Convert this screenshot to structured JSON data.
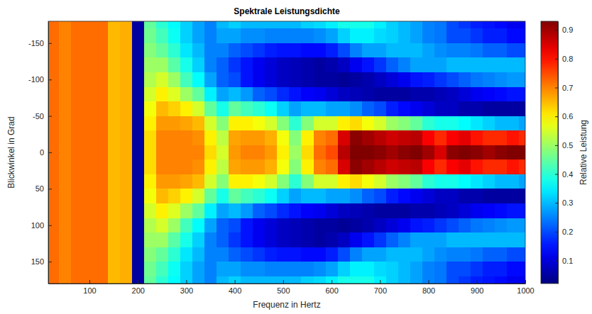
{
  "chart_data": {
    "type": "heatmap",
    "title": "Spektrale Leistungsdichte",
    "x_label": "Frequenz in Hertz",
    "y_label": "Blickwinkel in Grad",
    "color_label": "Relative Leistung",
    "xlim": [
      15,
      1000
    ],
    "ylim": [
      -180,
      180
    ],
    "xticks": [
      100,
      200,
      300,
      400,
      500,
      600,
      700,
      800,
      900,
      1000
    ],
    "yticks": [
      -150,
      -100,
      -50,
      0,
      50,
      100,
      150
    ],
    "color_range": [
      0.02,
      0.93
    ],
    "color_ticks": [
      0.1,
      0.2,
      0.3,
      0.4,
      0.5,
      0.6,
      0.7,
      0.8,
      0.9
    ],
    "x": [
      25,
      50,
      75,
      100,
      125,
      150,
      175,
      200,
      225,
      250,
      275,
      300,
      325,
      350,
      375,
      400,
      425,
      450,
      475,
      500,
      525,
      550,
      575,
      600,
      625,
      650,
      675,
      700,
      725,
      750,
      775,
      800,
      825,
      850,
      875,
      900,
      925,
      950,
      975,
      1000
    ],
    "y": [
      -180,
      -160,
      -140,
      -120,
      -100,
      -80,
      -60,
      -40,
      -20,
      0,
      20,
      40,
      60,
      80,
      100,
      120,
      140,
      160,
      180
    ],
    "values": [
      [
        0.72,
        0.72,
        0.72,
        0.72,
        0.72,
        0.72,
        0.72,
        0.72,
        0.72,
        0.72,
        0.72,
        0.72,
        0.72,
        0.72,
        0.72,
        0.72,
        0.72,
        0.72,
        0.72
      ],
      [
        0.7,
        0.7,
        0.7,
        0.7,
        0.7,
        0.7,
        0.7,
        0.7,
        0.7,
        0.7,
        0.7,
        0.7,
        0.7,
        0.7,
        0.7,
        0.7,
        0.7,
        0.7,
        0.7
      ],
      [
        0.72,
        0.72,
        0.72,
        0.72,
        0.72,
        0.72,
        0.72,
        0.72,
        0.72,
        0.72,
        0.72,
        0.72,
        0.72,
        0.72,
        0.72,
        0.72,
        0.72,
        0.72,
        0.72
      ],
      [
        0.72,
        0.72,
        0.72,
        0.72,
        0.72,
        0.72,
        0.72,
        0.72,
        0.72,
        0.72,
        0.72,
        0.72,
        0.72,
        0.72,
        0.72,
        0.72,
        0.72,
        0.72,
        0.72
      ],
      [
        0.72,
        0.72,
        0.72,
        0.72,
        0.72,
        0.72,
        0.72,
        0.72,
        0.72,
        0.72,
        0.72,
        0.72,
        0.72,
        0.72,
        0.72,
        0.72,
        0.72,
        0.72,
        0.72
      ],
      [
        0.65,
        0.65,
        0.65,
        0.65,
        0.65,
        0.65,
        0.65,
        0.65,
        0.65,
        0.65,
        0.65,
        0.65,
        0.65,
        0.65,
        0.65,
        0.65,
        0.65,
        0.65,
        0.65
      ],
      [
        0.66,
        0.66,
        0.66,
        0.66,
        0.66,
        0.66,
        0.66,
        0.66,
        0.66,
        0.66,
        0.66,
        0.66,
        0.66,
        0.66,
        0.66,
        0.66,
        0.66,
        0.66,
        0.66
      ],
      [
        0.05,
        0.05,
        0.05,
        0.05,
        0.05,
        0.05,
        0.05,
        0.05,
        0.05,
        0.05,
        0.05,
        0.05,
        0.05,
        0.05,
        0.05,
        0.05,
        0.05,
        0.05,
        0.05
      ],
      [
        0.45,
        0.46,
        0.48,
        0.5,
        0.52,
        0.55,
        0.58,
        0.6,
        0.62,
        0.62,
        0.62,
        0.6,
        0.58,
        0.55,
        0.52,
        0.5,
        0.48,
        0.46,
        0.45
      ],
      [
        0.4,
        0.42,
        0.45,
        0.5,
        0.55,
        0.6,
        0.65,
        0.68,
        0.7,
        0.7,
        0.7,
        0.68,
        0.65,
        0.6,
        0.55,
        0.5,
        0.45,
        0.42,
        0.4
      ],
      [
        0.36,
        0.37,
        0.4,
        0.44,
        0.5,
        0.56,
        0.63,
        0.68,
        0.7,
        0.7,
        0.7,
        0.68,
        0.63,
        0.56,
        0.5,
        0.44,
        0.4,
        0.37,
        0.36
      ],
      [
        0.32,
        0.32,
        0.34,
        0.38,
        0.42,
        0.5,
        0.6,
        0.67,
        0.7,
        0.7,
        0.7,
        0.67,
        0.6,
        0.5,
        0.42,
        0.38,
        0.34,
        0.32,
        0.32
      ],
      [
        0.28,
        0.28,
        0.3,
        0.32,
        0.36,
        0.45,
        0.55,
        0.65,
        0.69,
        0.7,
        0.69,
        0.65,
        0.55,
        0.45,
        0.36,
        0.32,
        0.3,
        0.28,
        0.28
      ],
      [
        0.25,
        0.25,
        0.25,
        0.25,
        0.28,
        0.35,
        0.45,
        0.55,
        0.6,
        0.62,
        0.6,
        0.55,
        0.45,
        0.35,
        0.28,
        0.25,
        0.25,
        0.25,
        0.25
      ],
      [
        0.3,
        0.28,
        0.25,
        0.22,
        0.22,
        0.28,
        0.38,
        0.48,
        0.53,
        0.55,
        0.53,
        0.48,
        0.38,
        0.28,
        0.22,
        0.22,
        0.25,
        0.28,
        0.3
      ],
      [
        0.32,
        0.28,
        0.22,
        0.18,
        0.2,
        0.3,
        0.45,
        0.6,
        0.67,
        0.68,
        0.67,
        0.6,
        0.45,
        0.3,
        0.2,
        0.18,
        0.22,
        0.28,
        0.32
      ],
      [
        0.3,
        0.26,
        0.2,
        0.15,
        0.15,
        0.27,
        0.42,
        0.6,
        0.68,
        0.7,
        0.68,
        0.6,
        0.42,
        0.27,
        0.15,
        0.15,
        0.2,
        0.26,
        0.3
      ],
      [
        0.3,
        0.26,
        0.18,
        0.12,
        0.12,
        0.22,
        0.4,
        0.58,
        0.68,
        0.7,
        0.68,
        0.58,
        0.4,
        0.22,
        0.12,
        0.12,
        0.18,
        0.26,
        0.3
      ],
      [
        0.3,
        0.25,
        0.16,
        0.1,
        0.1,
        0.2,
        0.37,
        0.55,
        0.66,
        0.68,
        0.66,
        0.55,
        0.37,
        0.2,
        0.1,
        0.1,
        0.16,
        0.25,
        0.3
      ],
      [
        0.3,
        0.25,
        0.15,
        0.08,
        0.08,
        0.17,
        0.32,
        0.48,
        0.58,
        0.6,
        0.58,
        0.48,
        0.32,
        0.17,
        0.08,
        0.08,
        0.15,
        0.25,
        0.3
      ],
      [
        0.3,
        0.25,
        0.15,
        0.07,
        0.07,
        0.15,
        0.28,
        0.4,
        0.48,
        0.5,
        0.48,
        0.4,
        0.28,
        0.15,
        0.07,
        0.07,
        0.15,
        0.25,
        0.3
      ],
      [
        0.32,
        0.25,
        0.14,
        0.06,
        0.06,
        0.13,
        0.3,
        0.48,
        0.6,
        0.62,
        0.6,
        0.48,
        0.3,
        0.13,
        0.06,
        0.06,
        0.14,
        0.25,
        0.32
      ],
      [
        0.33,
        0.26,
        0.14,
        0.05,
        0.05,
        0.12,
        0.3,
        0.55,
        0.7,
        0.72,
        0.7,
        0.55,
        0.3,
        0.12,
        0.05,
        0.05,
        0.14,
        0.26,
        0.33
      ],
      [
        0.35,
        0.28,
        0.16,
        0.06,
        0.05,
        0.1,
        0.28,
        0.55,
        0.72,
        0.75,
        0.72,
        0.55,
        0.28,
        0.1,
        0.05,
        0.06,
        0.16,
        0.28,
        0.35
      ],
      [
        0.38,
        0.32,
        0.2,
        0.08,
        0.04,
        0.08,
        0.28,
        0.6,
        0.85,
        0.88,
        0.85,
        0.6,
        0.28,
        0.08,
        0.04,
        0.08,
        0.2,
        0.32,
        0.38
      ],
      [
        0.38,
        0.35,
        0.25,
        0.12,
        0.05,
        0.07,
        0.26,
        0.62,
        0.92,
        0.95,
        0.92,
        0.62,
        0.26,
        0.07,
        0.05,
        0.12,
        0.25,
        0.35,
        0.38
      ],
      [
        0.38,
        0.35,
        0.28,
        0.15,
        0.06,
        0.06,
        0.22,
        0.58,
        0.9,
        0.93,
        0.9,
        0.58,
        0.22,
        0.06,
        0.06,
        0.15,
        0.28,
        0.35,
        0.38
      ],
      [
        0.35,
        0.33,
        0.28,
        0.18,
        0.08,
        0.05,
        0.2,
        0.55,
        0.88,
        0.92,
        0.88,
        0.55,
        0.2,
        0.05,
        0.08,
        0.18,
        0.28,
        0.33,
        0.35
      ],
      [
        0.32,
        0.32,
        0.3,
        0.22,
        0.1,
        0.05,
        0.16,
        0.5,
        0.86,
        0.9,
        0.86,
        0.5,
        0.16,
        0.05,
        0.1,
        0.22,
        0.3,
        0.32,
        0.32
      ],
      [
        0.3,
        0.3,
        0.3,
        0.25,
        0.12,
        0.05,
        0.14,
        0.48,
        0.87,
        0.92,
        0.87,
        0.48,
        0.14,
        0.05,
        0.12,
        0.25,
        0.3,
        0.3,
        0.3
      ],
      [
        0.28,
        0.28,
        0.3,
        0.28,
        0.15,
        0.06,
        0.12,
        0.45,
        0.88,
        0.95,
        0.88,
        0.45,
        0.12,
        0.06,
        0.15,
        0.28,
        0.3,
        0.28,
        0.28
      ],
      [
        0.25,
        0.25,
        0.28,
        0.28,
        0.16,
        0.06,
        0.1,
        0.4,
        0.82,
        0.9,
        0.82,
        0.4,
        0.1,
        0.06,
        0.16,
        0.28,
        0.28,
        0.25,
        0.25
      ],
      [
        0.24,
        0.24,
        0.26,
        0.28,
        0.18,
        0.07,
        0.08,
        0.38,
        0.78,
        0.85,
        0.78,
        0.38,
        0.08,
        0.07,
        0.18,
        0.28,
        0.26,
        0.24,
        0.24
      ],
      [
        0.2,
        0.2,
        0.25,
        0.3,
        0.2,
        0.08,
        0.08,
        0.38,
        0.82,
        0.92,
        0.82,
        0.38,
        0.08,
        0.08,
        0.2,
        0.3,
        0.25,
        0.2,
        0.2
      ],
      [
        0.18,
        0.2,
        0.25,
        0.3,
        0.22,
        0.1,
        0.06,
        0.36,
        0.84,
        0.95,
        0.84,
        0.36,
        0.06,
        0.1,
        0.22,
        0.3,
        0.25,
        0.2,
        0.18
      ],
      [
        0.16,
        0.18,
        0.24,
        0.3,
        0.24,
        0.12,
        0.06,
        0.34,
        0.8,
        0.92,
        0.8,
        0.34,
        0.06,
        0.12,
        0.24,
        0.3,
        0.24,
        0.18,
        0.16
      ],
      [
        0.15,
        0.16,
        0.22,
        0.3,
        0.25,
        0.13,
        0.05,
        0.32,
        0.78,
        0.9,
        0.78,
        0.32,
        0.05,
        0.13,
        0.25,
        0.3,
        0.22,
        0.16,
        0.15
      ],
      [
        0.14,
        0.16,
        0.22,
        0.3,
        0.26,
        0.14,
        0.05,
        0.3,
        0.78,
        0.92,
        0.78,
        0.3,
        0.05,
        0.14,
        0.26,
        0.3,
        0.22,
        0.16,
        0.14
      ],
      [
        0.12,
        0.14,
        0.2,
        0.3,
        0.27,
        0.15,
        0.05,
        0.3,
        0.8,
        0.95,
        0.8,
        0.3,
        0.05,
        0.15,
        0.27,
        0.3,
        0.2,
        0.14,
        0.12
      ],
      [
        0.12,
        0.14,
        0.2,
        0.3,
        0.27,
        0.15,
        0.05,
        0.28,
        0.78,
        0.95,
        0.78,
        0.28,
        0.05,
        0.15,
        0.27,
        0.3,
        0.2,
        0.14,
        0.12
      ]
    ]
  }
}
